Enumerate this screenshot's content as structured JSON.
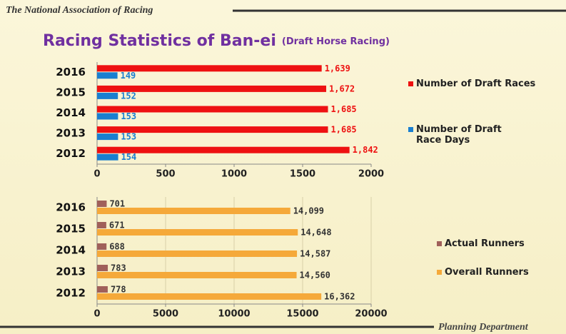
{
  "header": "The National Association of Racing",
  "title": "Racing Statistics of Ban-ei",
  "subtitle": "(Draft Horse Racing)",
  "footer": "Planning Department",
  "chart_data": [
    {
      "type": "bar",
      "orientation": "horizontal",
      "grid": false,
      "categories": [
        "2016",
        "2015",
        "2014",
        "2013",
        "2012"
      ],
      "series": [
        {
          "name": "Number of Draft Races",
          "color": "#ee1111",
          "values": [
            1639,
            1672,
            1685,
            1685,
            1842
          ],
          "value_labels": [
            "1,639",
            "1,672",
            "1,685",
            "1,685",
            "1,842"
          ]
        },
        {
          "name": "Number of Draft Race Days",
          "color": "#1a7fd0",
          "values": [
            149,
            152,
            153,
            153,
            154
          ]
        }
      ],
      "xlim": [
        0,
        2000
      ],
      "xticks": [
        0,
        500,
        1000,
        1500,
        2000
      ]
    },
    {
      "type": "bar",
      "orientation": "horizontal",
      "grid": true,
      "categories": [
        "2016",
        "2015",
        "2014",
        "2013",
        "2012"
      ],
      "series": [
        {
          "name": "Actual Runners",
          "color": "#a0605a",
          "values": [
            701,
            671,
            688,
            783,
            778
          ]
        },
        {
          "name": "Overall Runners",
          "color": "#f5a93a",
          "values": [
            14099,
            14648,
            14587,
            14560,
            16362
          ],
          "value_labels": [
            "14,099",
            "14,648",
            "14,587",
            "14,560",
            "16,362"
          ]
        }
      ],
      "xlim": [
        0,
        20000
      ],
      "xticks": [
        0,
        5000,
        10000,
        15000,
        20000
      ]
    }
  ]
}
